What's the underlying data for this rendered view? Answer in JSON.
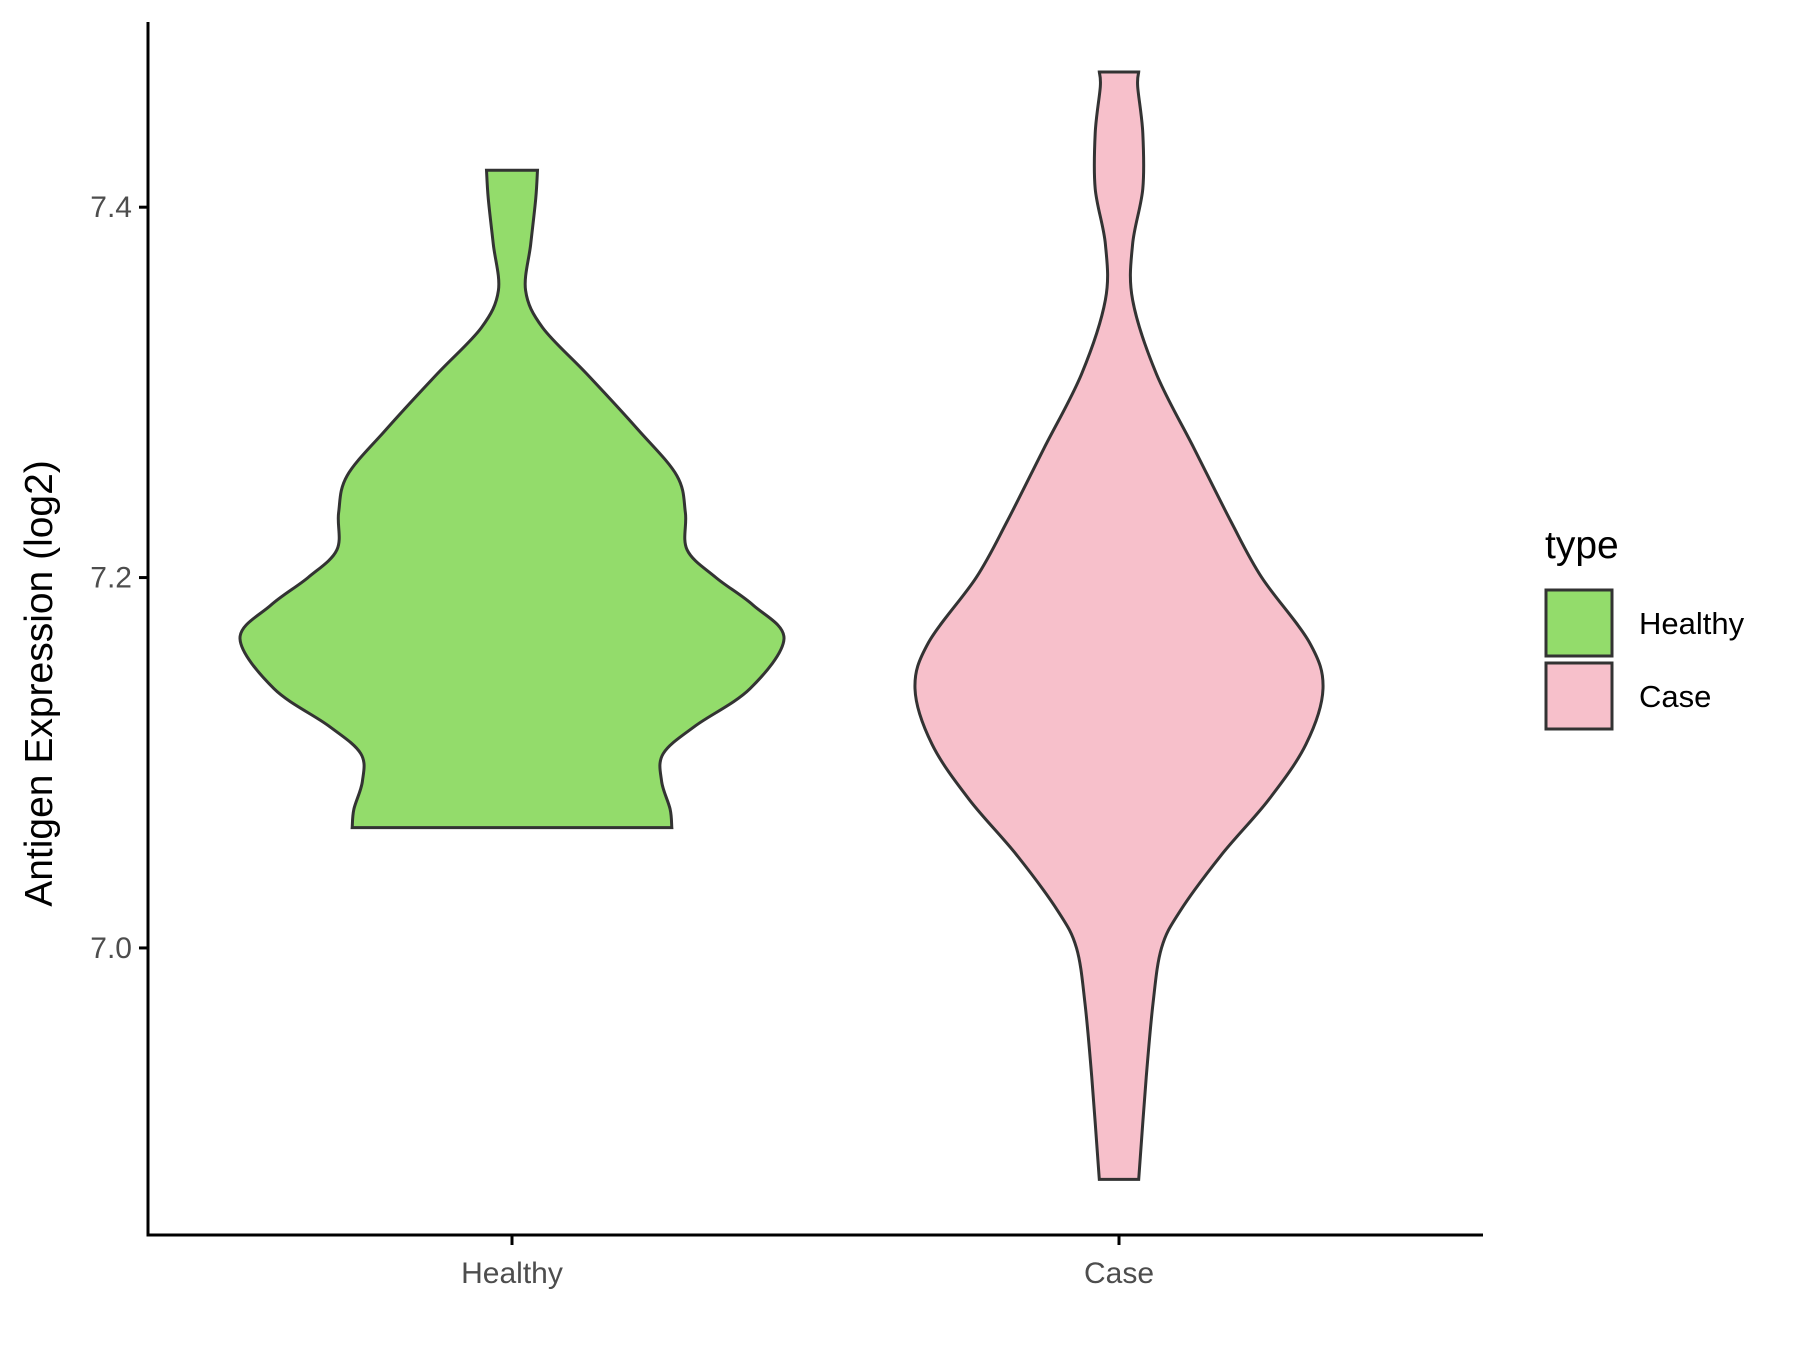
{
  "chart_data": {
    "type": "violin",
    "ylabel": "Antigen Expression (log2)",
    "categories": [
      "Healthy",
      "Case"
    ],
    "yticks": [
      7.0,
      7.2,
      7.4
    ],
    "ylim": [
      6.845,
      7.5
    ],
    "legend": {
      "title": "type",
      "placement": "right",
      "items": [
        {
          "label": "Healthy",
          "color": "#93dc6b"
        },
        {
          "label": "Case",
          "color": "#f7c0cb"
        }
      ]
    },
    "series": [
      {
        "category": "Healthy",
        "color": "#93dc6b",
        "min": 7.065,
        "max": 7.42,
        "density_profile": [
          [
            7.065,
            0.47
          ],
          [
            7.075,
            0.465
          ],
          [
            7.09,
            0.44
          ],
          [
            7.105,
            0.445
          ],
          [
            7.12,
            0.54
          ],
          [
            7.14,
            0.7
          ],
          [
            7.167,
            0.8
          ],
          [
            7.185,
            0.71
          ],
          [
            7.2,
            0.6
          ],
          [
            7.215,
            0.515
          ],
          [
            7.235,
            0.51
          ],
          [
            7.255,
            0.485
          ],
          [
            7.28,
            0.37
          ],
          [
            7.31,
            0.22
          ],
          [
            7.335,
            0.09
          ],
          [
            7.355,
            0.04
          ],
          [
            7.38,
            0.055
          ],
          [
            7.405,
            0.07
          ],
          [
            7.42,
            0.075
          ]
        ]
      },
      {
        "category": "Case",
        "color": "#f7c0cb",
        "min": 6.875,
        "max": 7.473,
        "density_profile": [
          [
            6.875,
            0.058
          ],
          [
            6.93,
            0.08
          ],
          [
            6.97,
            0.1
          ],
          [
            7.0,
            0.125
          ],
          [
            7.02,
            0.18
          ],
          [
            7.05,
            0.3
          ],
          [
            7.08,
            0.44
          ],
          [
            7.11,
            0.55
          ],
          [
            7.14,
            0.6
          ],
          [
            7.165,
            0.56
          ],
          [
            7.2,
            0.42
          ],
          [
            7.23,
            0.33
          ],
          [
            7.27,
            0.22
          ],
          [
            7.31,
            0.11
          ],
          [
            7.35,
            0.04
          ],
          [
            7.38,
            0.04
          ],
          [
            7.41,
            0.07
          ],
          [
            7.44,
            0.07
          ],
          [
            7.465,
            0.055
          ],
          [
            7.473,
            0.058
          ]
        ]
      }
    ]
  }
}
